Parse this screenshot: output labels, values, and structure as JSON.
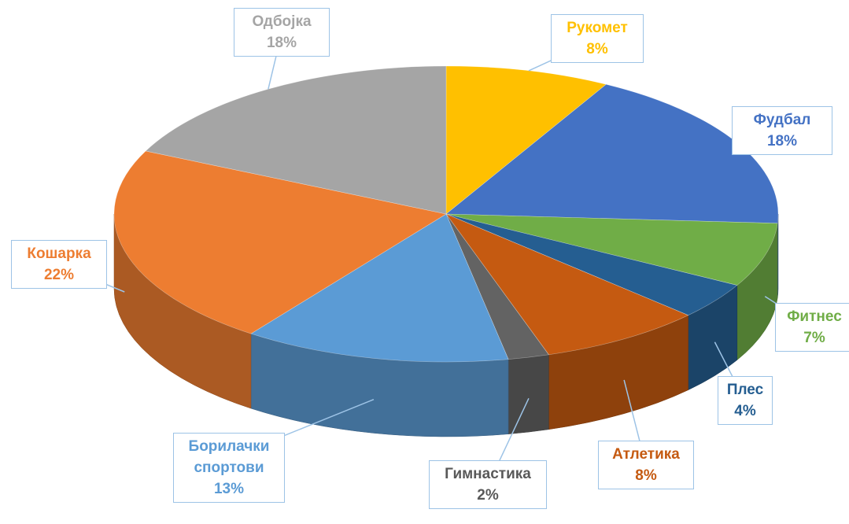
{
  "chart_data": {
    "type": "pie3d",
    "categories": [
      "Рукомет",
      "Фудбал",
      "Фитнес",
      "Плес",
      "Атлетика",
      "Гимнастика",
      "Борилачки спортови",
      "Кошарка",
      "Одбојка"
    ],
    "values": [
      8,
      18,
      7,
      4,
      8,
      2,
      13,
      22,
      18
    ],
    "value_labels": [
      "8%",
      "18%",
      "7%",
      "4%",
      "8%",
      "2%",
      "13%",
      "22%",
      "18%"
    ],
    "colors": [
      "#FFC000",
      "#4472C4",
      "#70AD47",
      "#255E91",
      "#C55A11",
      "#636363",
      "#5B9BD5",
      "#ED7D31",
      "#A5A5A5"
    ]
  }
}
